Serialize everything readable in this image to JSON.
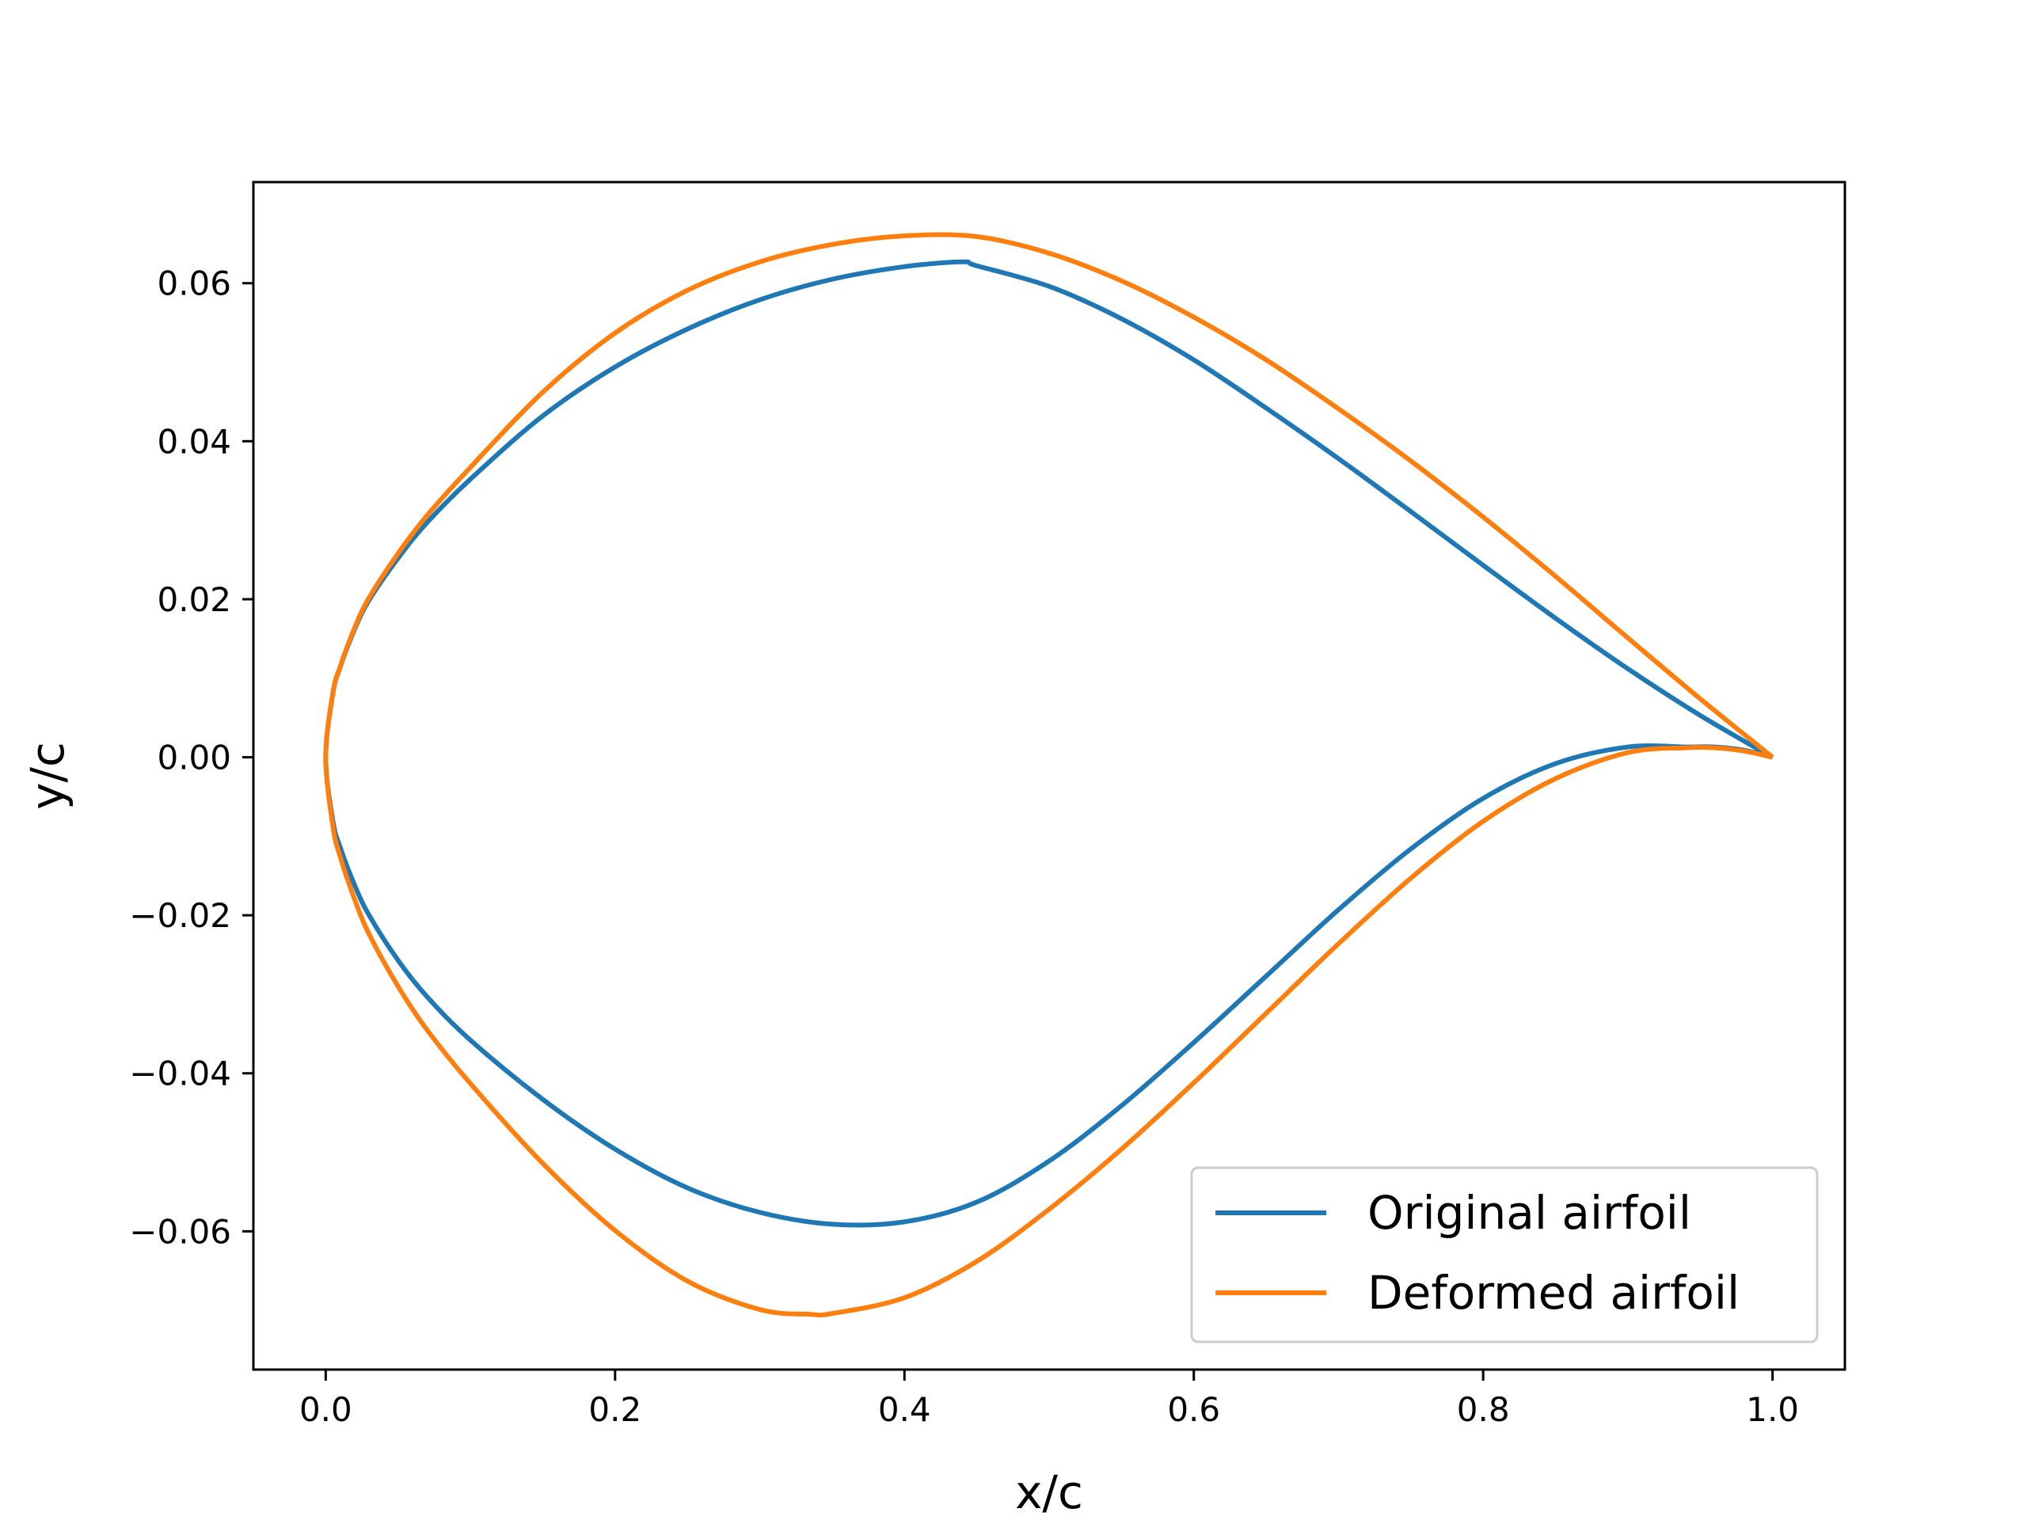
{
  "chart_data": {
    "type": "line",
    "title": "",
    "xlabel": "x/c",
    "ylabel": "y/c",
    "xlim": [
      -0.05,
      1.05
    ],
    "ylim": [
      -0.0775,
      0.0728
    ],
    "xticks": [
      0.0,
      0.2,
      0.4,
      0.6,
      0.8,
      1.0
    ],
    "xtick_labels": [
      "0.0",
      "0.2",
      "0.4",
      "0.6",
      "0.8",
      "1.0"
    ],
    "yticks": [
      -0.06,
      -0.04,
      -0.02,
      0.0,
      0.02,
      0.04,
      0.06
    ],
    "ytick_labels": [
      "−0.06",
      "−0.04",
      "−0.02",
      "0.00",
      "0.02",
      "0.04",
      "0.06"
    ],
    "grid": false,
    "legend_position": "lower-right",
    "series": [
      {
        "name": "Original airfoil",
        "color": "#1f77b4",
        "x": [
          1.0,
          0.95,
          0.9,
          0.85,
          0.8,
          0.75,
          0.7,
          0.65,
          0.6,
          0.55,
          0.5,
          0.45,
          0.44,
          0.4,
          0.35,
          0.3,
          0.25,
          0.2,
          0.15,
          0.1,
          0.07,
          0.05,
          0.03,
          0.02,
          0.01,
          0.005,
          0.0,
          0.005,
          0.01,
          0.02,
          0.03,
          0.05,
          0.07,
          0.1,
          0.15,
          0.2,
          0.25,
          0.3,
          0.35,
          0.4,
          0.45,
          0.5,
          0.55,
          0.6,
          0.65,
          0.7,
          0.75,
          0.8,
          0.85,
          0.9,
          0.94,
          0.96,
          0.98,
          1.0
        ],
        "y": [
          0.0,
          0.0053,
          0.0112,
          0.0176,
          0.0243,
          0.0311,
          0.0378,
          0.0442,
          0.0503,
          0.0555,
          0.0596,
          0.0622,
          0.0627,
          0.0621,
          0.0605,
          0.0579,
          0.0542,
          0.0494,
          0.0432,
          0.0352,
          0.0297,
          0.0252,
          0.0199,
          0.0162,
          0.0114,
          0.0081,
          0.0,
          -0.0081,
          -0.0114,
          -0.0162,
          -0.02,
          -0.0257,
          -0.0303,
          -0.0358,
          -0.0433,
          -0.0496,
          -0.0545,
          -0.0576,
          -0.0591,
          -0.0588,
          -0.0563,
          -0.0511,
          -0.0441,
          -0.0361,
          -0.0277,
          -0.0193,
          -0.0116,
          -0.0052,
          -0.0008,
          0.0013,
          0.0013,
          0.0013,
          0.0009,
          0.0
        ]
      },
      {
        "name": "Deformed airfoil",
        "color": "#ff7f0e",
        "x": [
          1.0,
          0.95,
          0.9,
          0.85,
          0.8,
          0.75,
          0.7,
          0.65,
          0.6,
          0.55,
          0.5,
          0.45,
          0.4,
          0.35,
          0.3,
          0.25,
          0.2,
          0.15,
          0.1,
          0.07,
          0.05,
          0.03,
          0.02,
          0.01,
          0.005,
          0.0,
          0.005,
          0.01,
          0.02,
          0.03,
          0.05,
          0.07,
          0.1,
          0.15,
          0.2,
          0.25,
          0.3,
          0.335,
          0.35,
          0.4,
          0.45,
          0.5,
          0.55,
          0.6,
          0.65,
          0.7,
          0.75,
          0.8,
          0.85,
          0.9,
          0.94,
          0.96,
          0.98,
          1.0
        ],
        "y": [
          0.0,
          0.0074,
          0.0151,
          0.0229,
          0.0304,
          0.0375,
          0.0441,
          0.0503,
          0.0557,
          0.0603,
          0.0638,
          0.0659,
          0.066,
          0.0649,
          0.0627,
          0.0591,
          0.0537,
          0.0462,
          0.0367,
          0.0306,
          0.0258,
          0.0202,
          0.0164,
          0.0115,
          0.0082,
          0.0,
          -0.0088,
          -0.0126,
          -0.018,
          -0.0224,
          -0.029,
          -0.0345,
          -0.0413,
          -0.0514,
          -0.0599,
          -0.0663,
          -0.0699,
          -0.0705,
          -0.0704,
          -0.0684,
          -0.0638,
          -0.0572,
          -0.0496,
          -0.0412,
          -0.0324,
          -0.0236,
          -0.0153,
          -0.0081,
          -0.0027,
          0.0006,
          0.0012,
          0.0012,
          0.0008,
          0.0
        ]
      }
    ]
  }
}
